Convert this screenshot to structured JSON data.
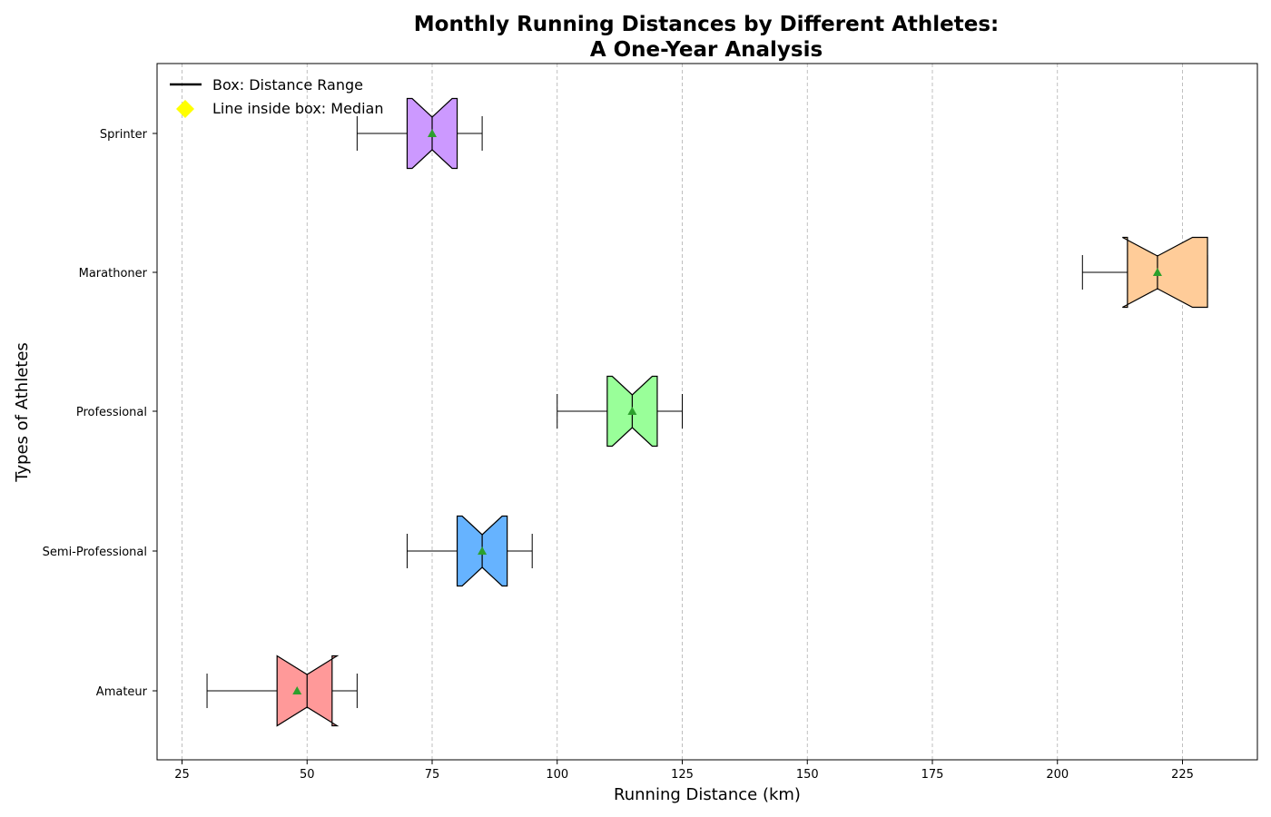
{
  "chart_data": {
    "type": "boxplot",
    "orientation": "horizontal",
    "title": "Monthly Running Distances by Different Athletes:\nA One-Year Analysis",
    "xlabel": "Running Distance (km)",
    "ylabel": "Types of Athletes",
    "xlim": [
      20,
      240
    ],
    "xticks": [
      25,
      50,
      75,
      100,
      125,
      150,
      175,
      200,
      225
    ],
    "grid": "x-dashed",
    "notched": true,
    "show_means": true,
    "mean_marker_color": "#2ca02c",
    "legend_position": "upper-left",
    "legend": [
      {
        "label": "Box: Distance Range",
        "marker": "line",
        "color": "#000000"
      },
      {
        "label": "Line inside box: Median",
        "marker": "diamond",
        "color": "#ffff00"
      }
    ],
    "categories": [
      "Amateur",
      "Semi-Professional",
      "Professional",
      "Marathoner",
      "Sprinter"
    ],
    "series": [
      {
        "category": "Amateur",
        "min": 30,
        "q1": 44,
        "median": 50,
        "q3": 55,
        "max": 60,
        "mean": 48,
        "notch": [
          44,
          56
        ],
        "color": "#ff9999"
      },
      {
        "category": "Semi-Professional",
        "min": 70,
        "q1": 80,
        "median": 85,
        "q3": 90,
        "max": 95,
        "mean": 85,
        "notch": [
          81,
          89
        ],
        "color": "#66b3ff"
      },
      {
        "category": "Professional",
        "min": 100,
        "q1": 110,
        "median": 115,
        "q3": 120,
        "max": 125,
        "mean": 115,
        "notch": [
          111,
          119
        ],
        "color": "#99ff99"
      },
      {
        "category": "Marathoner",
        "min": 205,
        "q1": 214,
        "median": 220,
        "q3": 230,
        "max": 230,
        "mean": 220,
        "notch": [
          213,
          227
        ],
        "color": "#ffcc99"
      },
      {
        "category": "Sprinter",
        "min": 60,
        "q1": 70,
        "median": 75,
        "q3": 80,
        "max": 85,
        "mean": 75,
        "notch": [
          71,
          79
        ],
        "color": "#cc99ff"
      }
    ]
  }
}
